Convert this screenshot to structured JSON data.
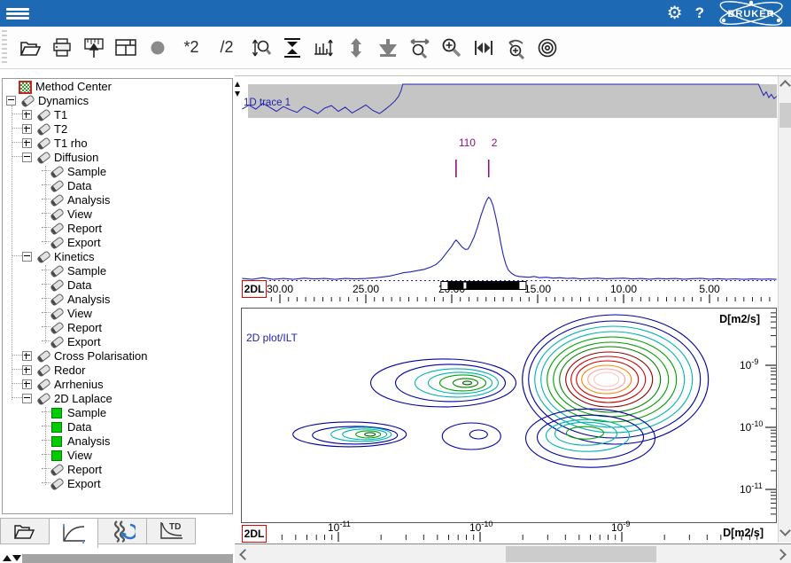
{
  "header": {
    "background": "#1d69b4",
    "help_label": "?",
    "brand": "BRUKER"
  },
  "toolbar": {
    "multiply_label": "*2",
    "divide_label": "/2",
    "buttons": [
      "open",
      "print",
      "paste-spectrum",
      "window-layout",
      "record",
      "multiply-2",
      "divide-2",
      "zoom-vertical",
      "fit-vertical",
      "scale-ticks",
      "expand-vertical",
      "move-to-bottom",
      "zoom-horizontal",
      "zoom-in",
      "full-range",
      "zoom-undo",
      "calibrate"
    ]
  },
  "sidebar": {
    "tree": [
      {
        "label": "Method Center",
        "level": 0,
        "icon": "method",
        "expand": "none"
      },
      {
        "label": "Dynamics",
        "level": 0,
        "icon": "pencil",
        "expand": "minus"
      },
      {
        "label": "T1",
        "level": 1,
        "icon": "pencil",
        "expand": "plus"
      },
      {
        "label": "T2",
        "level": 1,
        "icon": "pencil",
        "expand": "plus"
      },
      {
        "label": "T1 rho",
        "level": 1,
        "icon": "pencil",
        "expand": "plus"
      },
      {
        "label": "Diffusion",
        "level": 1,
        "icon": "pencil",
        "expand": "minus"
      },
      {
        "label": "Sample",
        "level": 2,
        "icon": "pencil",
        "expand": "none"
      },
      {
        "label": "Data",
        "level": 2,
        "icon": "pencil",
        "expand": "none"
      },
      {
        "label": "Analysis",
        "level": 2,
        "icon": "pencil",
        "expand": "none"
      },
      {
        "label": "View",
        "level": 2,
        "icon": "pencil",
        "expand": "none"
      },
      {
        "label": "Report",
        "level": 2,
        "icon": "pencil",
        "expand": "none"
      },
      {
        "label": "Export",
        "level": 2,
        "icon": "pencil",
        "expand": "none"
      },
      {
        "label": "Kinetics",
        "level": 1,
        "icon": "pencil",
        "expand": "minus"
      },
      {
        "label": "Sample",
        "level": 2,
        "icon": "pencil",
        "expand": "none"
      },
      {
        "label": "Data",
        "level": 2,
        "icon": "pencil",
        "expand": "none"
      },
      {
        "label": "Analysis",
        "level": 2,
        "icon": "pencil",
        "expand": "none"
      },
      {
        "label": "View",
        "level": 2,
        "icon": "pencil",
        "expand": "none"
      },
      {
        "label": "Report",
        "level": 2,
        "icon": "pencil",
        "expand": "none"
      },
      {
        "label": "Export",
        "level": 2,
        "icon": "pencil",
        "expand": "none"
      },
      {
        "label": "Cross Polarisation",
        "level": 1,
        "icon": "pencil",
        "expand": "plus"
      },
      {
        "label": "Redor",
        "level": 1,
        "icon": "pencil",
        "expand": "plus"
      },
      {
        "label": "Arrhenius",
        "level": 1,
        "icon": "pencil",
        "expand": "plus"
      },
      {
        "label": "2D Laplace",
        "level": 1,
        "icon": "pencil",
        "expand": "minus"
      },
      {
        "label": "Sample",
        "level": 2,
        "icon": "green",
        "expand": "none"
      },
      {
        "label": "Data",
        "level": 2,
        "icon": "green",
        "expand": "none"
      },
      {
        "label": "Analysis",
        "level": 2,
        "icon": "green",
        "expand": "none"
      },
      {
        "label": "View",
        "level": 2,
        "icon": "green",
        "expand": "none"
      },
      {
        "label": "Report",
        "level": 2,
        "icon": "pencil",
        "expand": "none"
      },
      {
        "label": "Export",
        "level": 2,
        "icon": "pencil",
        "expand": "none"
      }
    ],
    "tabs": [
      {
        "name": "open-tab",
        "selected": false
      },
      {
        "name": "analysis-curve-tab",
        "selected": true
      },
      {
        "name": "dynamics-tab",
        "selected": false
      },
      {
        "name": "time-domain-tab",
        "selected": false,
        "icon_text": "TD"
      }
    ]
  },
  "main": {
    "trace_label": "1D trace 1",
    "plot2d_label": "2D plot/ILT",
    "badge_1d": "2DL",
    "badge_2d": "2DL",
    "axis_label_2d": "D[m2/s]"
  },
  "colors": {
    "trace": "#2222b0",
    "band": "#c5c5c5",
    "marker": "#8a1280",
    "tick": "#222222"
  },
  "chart_data": [
    {
      "type": "line",
      "title": "1D trace 1",
      "xlabel": "",
      "xlim": [
        32.3,
        1.0
      ],
      "x_ticks_major": [
        30,
        25,
        20,
        15,
        10,
        5
      ],
      "x_tick_labels": [
        "30.00",
        "25.00",
        "20.00",
        "15.00",
        "10.00",
        "5.00"
      ],
      "x_minor_step": 0.5,
      "baseline_dotted": true,
      "selector_range": [
        20.65,
        15.65
      ],
      "peak_markers": [
        {
          "x": 19.75,
          "label": "110"
        },
        {
          "x": 17.85,
          "label": "2"
        }
      ],
      "series": [
        {
          "name": "overview_clipped",
          "points": [
            [
              32.2,
              0.22
            ],
            [
              31.8,
              0.35
            ],
            [
              31.4,
              0.22
            ],
            [
              31.0,
              0.4
            ],
            [
              30.6,
              0.28
            ],
            [
              30.2,
              0.15
            ],
            [
              29.8,
              0.3
            ],
            [
              29.4,
              0.2
            ],
            [
              29.0,
              0.12
            ],
            [
              28.6,
              0.3
            ],
            [
              28.2,
              0.2
            ],
            [
              27.8,
              0.08
            ],
            [
              27.4,
              0.25
            ],
            [
              27.0,
              0.33
            ],
            [
              26.6,
              0.15
            ],
            [
              26.2,
              0.28
            ],
            [
              25.8,
              0.1
            ],
            [
              25.4,
              0.22
            ],
            [
              25.0,
              0.35
            ],
            [
              24.6,
              0.18
            ],
            [
              24.2,
              0.08
            ],
            [
              23.9,
              0.2
            ],
            [
              23.6,
              0.33
            ],
            [
              23.3,
              0.48
            ],
            [
              23.1,
              0.62
            ],
            [
              22.95,
              0.8
            ],
            [
              22.85,
              1.0
            ],
            [
              2.15,
              1.0
            ],
            [
              2.0,
              0.82
            ],
            [
              1.85,
              0.65
            ],
            [
              1.7,
              0.76
            ],
            [
              1.55,
              0.58
            ],
            [
              1.4,
              0.68
            ],
            [
              1.25,
              0.55
            ],
            [
              1.1,
              0.62
            ]
          ]
        },
        {
          "name": "spectrum",
          "points": [
            [
              32.2,
              0.02
            ],
            [
              31.6,
              0.01
            ],
            [
              31.0,
              0.03
            ],
            [
              30.4,
              0.01
            ],
            [
              29.8,
              0.02
            ],
            [
              29.2,
              0.01
            ],
            [
              28.6,
              0.025
            ],
            [
              28.0,
              0.015
            ],
            [
              27.4,
              0.02
            ],
            [
              26.8,
              0.01
            ],
            [
              26.2,
              0.02
            ],
            [
              25.6,
              0.015
            ],
            [
              25.0,
              0.02
            ],
            [
              24.4,
              0.03
            ],
            [
              24.0,
              0.04
            ],
            [
              23.6,
              0.05
            ],
            [
              23.2,
              0.07
            ],
            [
              22.8,
              0.09
            ],
            [
              22.4,
              0.1
            ],
            [
              22.0,
              0.115
            ],
            [
              21.6,
              0.13
            ],
            [
              21.2,
              0.16
            ],
            [
              20.9,
              0.19
            ],
            [
              20.6,
              0.25
            ],
            [
              20.3,
              0.33
            ],
            [
              20.0,
              0.41
            ],
            [
              19.85,
              0.46
            ],
            [
              19.75,
              0.485
            ],
            [
              19.6,
              0.45
            ],
            [
              19.4,
              0.4
            ],
            [
              19.2,
              0.37
            ],
            [
              19.05,
              0.375
            ],
            [
              18.9,
              0.43
            ],
            [
              18.7,
              0.52
            ],
            [
              18.5,
              0.64
            ],
            [
              18.3,
              0.78
            ],
            [
              18.1,
              0.9
            ],
            [
              17.95,
              0.97
            ],
            [
              17.85,
              1.0
            ],
            [
              17.75,
              0.98
            ],
            [
              17.6,
              0.9
            ],
            [
              17.45,
              0.77
            ],
            [
              17.3,
              0.62
            ],
            [
              17.15,
              0.45
            ],
            [
              17.0,
              0.3
            ],
            [
              16.85,
              0.19
            ],
            [
              16.7,
              0.12
            ],
            [
              16.5,
              0.08
            ],
            [
              16.3,
              0.055
            ],
            [
              16.1,
              0.045
            ],
            [
              15.8,
              0.04
            ],
            [
              15.5,
              0.035
            ],
            [
              15.2,
              0.045
            ],
            [
              14.9,
              0.03
            ],
            [
              14.5,
              0.035
            ],
            [
              14.1,
              0.025
            ],
            [
              13.7,
              0.03
            ],
            [
              13.3,
              0.02
            ],
            [
              12.9,
              0.025
            ],
            [
              12.5,
              0.015
            ],
            [
              12.0,
              0.02
            ],
            [
              11.5,
              0.025
            ],
            [
              11.0,
              0.015
            ],
            [
              10.5,
              0.02
            ],
            [
              10.0,
              0.025
            ],
            [
              9.5,
              0.015
            ],
            [
              9.0,
              0.02
            ],
            [
              8.5,
              0.012
            ],
            [
              8.0,
              0.02
            ],
            [
              7.5,
              0.015
            ],
            [
              7.0,
              0.02
            ],
            [
              6.5,
              0.012
            ],
            [
              6.0,
              0.018
            ],
            [
              5.5,
              0.022
            ],
            [
              5.0,
              0.012
            ],
            [
              4.5,
              0.018
            ],
            [
              4.0,
              0.012
            ],
            [
              3.5,
              0.016
            ],
            [
              3.0,
              0.01
            ],
            [
              2.5,
              0.015
            ],
            [
              2.0,
              0.012
            ],
            [
              1.5,
              0.014
            ],
            [
              1.1,
              0.01
            ]
          ]
        }
      ]
    },
    {
      "type": "contour",
      "title": "2D plot/ILT",
      "xlabel": "D[m2/s]",
      "ylabel": "D[m2/s]",
      "x_scale": "log",
      "y_scale": "log",
      "x_decades": [
        -11,
        -10,
        -9
      ],
      "y_decades": [
        -9,
        -10,
        -11
      ],
      "peaks": [
        {
          "x": 5.5e-11,
          "y": 5.2e-10,
          "rings": [
            [
              "#0000a0",
              82,
              27,
              0,
              0
            ],
            [
              "#0000a0",
              62,
              21,
              8,
              0
            ],
            [
              "#00b2b2",
              47,
              16,
              15,
              0
            ],
            [
              "#00b2b2",
              36,
              12,
              19,
              0
            ],
            [
              "#00a000",
              26,
              9,
              22,
              0
            ],
            [
              "#008000",
              14,
              5,
              25,
              0
            ],
            [
              "#006000",
              5,
              2,
              27,
              0
            ]
          ]
        },
        {
          "x": 1.2e-11,
          "y": 7.7e-11,
          "rings": [
            [
              "#0000a0",
              64,
              14,
              0,
              0
            ],
            [
              "#0000a0",
              48,
              10,
              6,
              1
            ],
            [
              "#00b2b2",
              34,
              8,
              13,
              0
            ],
            [
              "#00b2b2",
              25,
              6,
              17,
              0
            ],
            [
              "#00a000",
              14,
              4,
              21,
              0
            ],
            [
              "#006000",
              6,
              2,
              23,
              0
            ]
          ]
        },
        {
          "x": 8.7e-11,
          "y": 7.2e-11,
          "rings": [
            [
              "#0000a0",
              33,
              15,
              0,
              0
            ],
            [
              "#0000a0",
              10,
              5,
              8,
              -2
            ]
          ]
        },
        {
          "x": 9e-10,
          "y": 5.9e-10,
          "rings": [
            [
              "#0000a0",
              105,
              73,
              0,
              0
            ],
            [
              "#0000a0",
              97,
              66,
              -1,
              0
            ],
            [
              "#00b2b2",
              89,
              60,
              -2,
              0
            ],
            [
              "#00b2b2",
              81,
              54,
              -3,
              0
            ],
            [
              "#00a000",
              73,
              48,
              -4,
              0
            ],
            [
              "#00a000",
              65,
              42,
              -5,
              0
            ],
            [
              "#008000",
              57,
              37,
              -6,
              0
            ],
            [
              "#8b0000",
              49,
              31,
              -7,
              0
            ],
            [
              "#cc0000",
              42,
              26,
              -8,
              0
            ],
            [
              "#cc0000",
              35,
              21,
              -9,
              0
            ],
            [
              "#ff8000",
              28,
              16,
              -10,
              0
            ],
            [
              "#ff9fa0",
              21,
              12,
              -10,
              0
            ],
            [
              "#ffc6c6",
              14,
              8,
              -10,
              0
            ]
          ]
        },
        {
          "x": 6e-10,
          "y": 6.7e-11,
          "rings": [
            [
              "#0000a0",
              73,
              33,
              0,
              0
            ],
            [
              "#0000a0",
              60,
              25,
              0,
              -1
            ],
            [
              "#00b2b2",
              47,
              18,
              -3,
              -3
            ],
            [
              "#00b2b2",
              35,
              13,
              -5,
              -5
            ],
            [
              "#00a000",
              21,
              7,
              -6,
              -6
            ]
          ]
        }
      ]
    }
  ]
}
